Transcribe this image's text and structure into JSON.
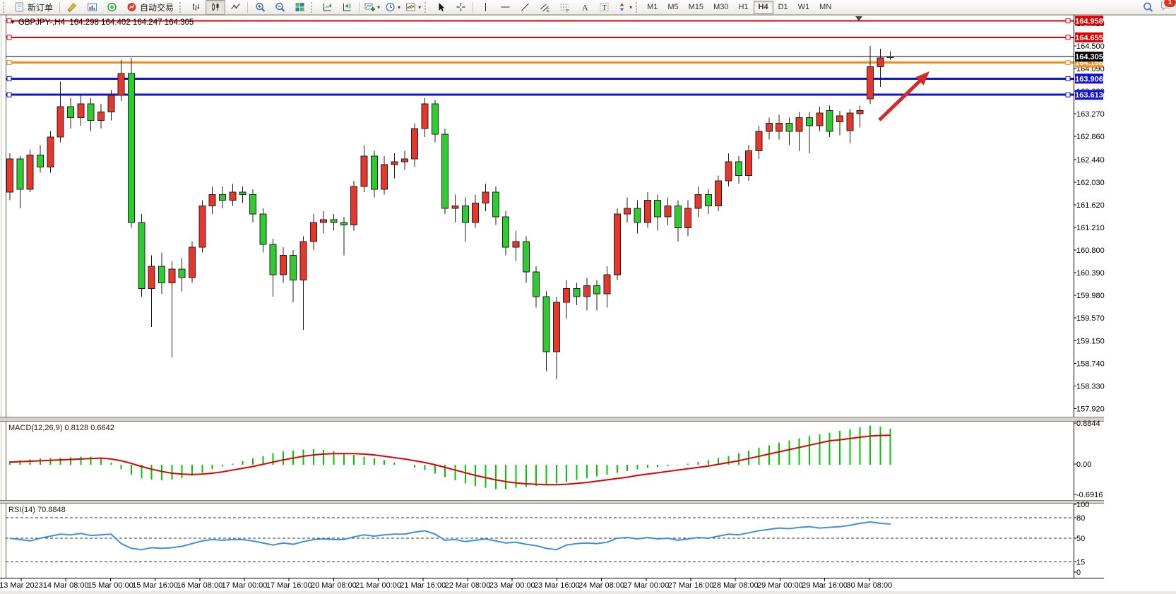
{
  "toolbar": {
    "new_order_label": "新订单",
    "autotrade_label": "自动交易",
    "timeframes": [
      "M1",
      "M5",
      "M15",
      "M30",
      "H1",
      "H4",
      "D1",
      "W1",
      "MN"
    ],
    "active_timeframe": "H4",
    "notification_count": "1"
  },
  "chart": {
    "title": {
      "symbol_period": "GBPJPY-,H4",
      "open": "164.298",
      "high": "164.402",
      "low": "164.247",
      "close": "164.305"
    },
    "colors": {
      "bull": "#e8362a",
      "bear": "#2fcc2f",
      "wick": "#1a1a1a",
      "red_level": "#e00000",
      "orange_level": "#ef8e1e",
      "blue_level": "#1212d2",
      "bid": "#000000",
      "macd_hist": "#00c800",
      "macd_signal": "#e00000",
      "rsi_line": "#3a91e0",
      "arrow": "#d42929"
    },
    "price_axis_ticks": [
      "164.910",
      "164.500",
      "164.090",
      "163.680",
      "163.270",
      "162.860",
      "162.440",
      "162.030",
      "161.620",
      "161.210",
      "160.800",
      "160.390",
      "159.980",
      "159.570",
      "159.150",
      "158.740",
      "158.330",
      "157.920"
    ],
    "time_axis_labels": [
      "13 Mar 2023",
      "14 Mar 08:00",
      "15 Mar 00:00",
      "15 Mar 16:00",
      "16 Mar 08:00",
      "17 Mar 00:00",
      "17 Mar 16:00",
      "20 Mar 08:00",
      "21 Mar 00:00",
      "21 Mar 16:00",
      "22 Mar 08:00",
      "23 Mar 00:00",
      "23 Mar 16:00",
      "24 Mar 08:00",
      "27 Mar 00:00",
      "27 Mar 16:00",
      "28 Mar 08:00",
      "29 Mar 00:00",
      "29 Mar 16:00",
      "30 Mar 08:00"
    ],
    "levels": [
      {
        "label": "164.958",
        "value": 164.958,
        "type": "red"
      },
      {
        "label": "164.655",
        "value": 164.655,
        "type": "red"
      },
      {
        "label": "164.198",
        "value": 164.198,
        "type": "orange"
      },
      {
        "label": "163.906",
        "value": 163.906,
        "type": "blue"
      },
      {
        "label": "163.613",
        "value": 163.613,
        "type": "blue"
      }
    ],
    "bid": {
      "label": "164.305",
      "value": 164.305
    },
    "candles": [
      [
        161.85,
        162.55,
        161.7,
        162.45
      ],
      [
        162.45,
        162.5,
        161.55,
        161.9
      ],
      [
        161.9,
        162.62,
        161.85,
        162.52
      ],
      [
        162.52,
        162.7,
        162.2,
        162.3
      ],
      [
        162.3,
        162.95,
        162.2,
        162.85
      ],
      [
        162.85,
        163.85,
        162.75,
        163.4
      ],
      [
        163.4,
        163.55,
        163.0,
        163.2
      ],
      [
        163.2,
        163.6,
        163.05,
        163.45
      ],
      [
        163.45,
        163.55,
        162.95,
        163.15
      ],
      [
        163.15,
        163.45,
        163.0,
        163.3
      ],
      [
        163.3,
        163.7,
        163.15,
        163.6
      ],
      [
        163.6,
        164.25,
        163.5,
        164.0
      ],
      [
        164.0,
        164.28,
        161.2,
        161.3
      ],
      [
        161.3,
        161.45,
        159.95,
        160.1
      ],
      [
        160.1,
        160.7,
        159.4,
        160.5
      ],
      [
        160.5,
        160.75,
        160.0,
        160.2
      ],
      [
        160.2,
        160.6,
        158.85,
        160.45
      ],
      [
        160.45,
        160.65,
        160.05,
        160.3
      ],
      [
        160.3,
        160.95,
        160.2,
        160.85
      ],
      [
        160.85,
        161.7,
        160.75,
        161.6
      ],
      [
        161.6,
        161.95,
        161.45,
        161.8
      ],
      [
        161.8,
        161.95,
        161.55,
        161.7
      ],
      [
        161.7,
        162.0,
        161.6,
        161.85
      ],
      [
        161.85,
        161.95,
        161.65,
        161.8
      ],
      [
        161.8,
        161.9,
        161.3,
        161.45
      ],
      [
        161.45,
        161.55,
        160.75,
        160.9
      ],
      [
        160.9,
        161.0,
        159.95,
        160.35
      ],
      [
        160.35,
        160.85,
        160.2,
        160.7
      ],
      [
        160.7,
        160.8,
        159.85,
        160.25
      ],
      [
        160.25,
        161.05,
        159.35,
        160.95
      ],
      [
        160.95,
        161.45,
        160.8,
        161.3
      ],
      [
        161.3,
        161.5,
        161.1,
        161.35
      ],
      [
        161.35,
        161.45,
        161.15,
        161.3
      ],
      [
        161.3,
        161.4,
        160.7,
        161.25
      ],
      [
        161.25,
        162.05,
        161.15,
        161.95
      ],
      [
        161.95,
        162.7,
        161.85,
        162.5
      ],
      [
        162.5,
        162.6,
        161.75,
        161.9
      ],
      [
        161.9,
        162.5,
        161.8,
        162.35
      ],
      [
        162.35,
        162.55,
        162.1,
        162.4
      ],
      [
        162.4,
        162.6,
        162.25,
        162.45
      ],
      [
        162.45,
        163.1,
        162.3,
        163.0
      ],
      [
        163.0,
        163.55,
        162.85,
        163.45
      ],
      [
        163.45,
        163.52,
        162.75,
        162.9
      ],
      [
        162.9,
        163.0,
        161.45,
        161.55
      ],
      [
        161.55,
        161.8,
        161.3,
        161.6
      ],
      [
        161.6,
        161.75,
        160.95,
        161.3
      ],
      [
        161.3,
        161.8,
        161.2,
        161.65
      ],
      [
        161.65,
        162.0,
        161.5,
        161.85
      ],
      [
        161.85,
        161.95,
        161.25,
        161.4
      ],
      [
        161.4,
        161.5,
        160.7,
        160.85
      ],
      [
        160.85,
        161.15,
        160.6,
        160.95
      ],
      [
        160.95,
        161.05,
        160.2,
        160.4
      ],
      [
        160.4,
        160.5,
        159.75,
        159.95
      ],
      [
        159.95,
        160.05,
        158.6,
        158.95
      ],
      [
        158.95,
        159.95,
        158.45,
        159.85
      ],
      [
        159.85,
        160.25,
        159.55,
        160.1
      ],
      [
        160.1,
        160.2,
        159.8,
        159.95
      ],
      [
        159.95,
        160.3,
        159.7,
        160.15
      ],
      [
        160.15,
        160.25,
        159.7,
        160.0
      ],
      [
        160.0,
        160.5,
        159.75,
        160.35
      ],
      [
        160.35,
        161.55,
        160.25,
        161.45
      ],
      [
        161.45,
        161.75,
        161.3,
        161.55
      ],
      [
        161.55,
        161.7,
        161.1,
        161.3
      ],
      [
        161.3,
        161.85,
        161.2,
        161.7
      ],
      [
        161.7,
        161.8,
        161.15,
        161.4
      ],
      [
        161.4,
        161.75,
        161.25,
        161.6
      ],
      [
        161.6,
        161.7,
        160.95,
        161.2
      ],
      [
        161.2,
        161.7,
        161.05,
        161.55
      ],
      [
        161.55,
        161.95,
        161.4,
        161.8
      ],
      [
        161.8,
        161.9,
        161.45,
        161.6
      ],
      [
        161.6,
        162.15,
        161.5,
        162.05
      ],
      [
        162.05,
        162.55,
        161.95,
        162.4
      ],
      [
        162.4,
        162.5,
        162.0,
        162.15
      ],
      [
        162.15,
        162.7,
        162.05,
        162.6
      ],
      [
        162.6,
        163.05,
        162.45,
        162.95
      ],
      [
        162.95,
        163.2,
        162.8,
        163.1
      ],
      [
        162.95,
        163.25,
        162.8,
        163.1
      ],
      [
        163.1,
        163.2,
        162.7,
        162.95
      ],
      [
        162.95,
        163.3,
        162.6,
        163.2
      ],
      [
        163.2,
        163.3,
        162.55,
        163.05
      ],
      [
        163.05,
        163.4,
        162.95,
        163.28
      ],
      [
        163.33,
        163.42,
        162.85,
        162.95
      ],
      [
        163.12,
        163.32,
        162.88,
        163.23
      ],
      [
        162.96,
        163.36,
        162.73,
        163.28
      ],
      [
        163.27,
        163.42,
        163.02,
        163.33
      ],
      [
        163.54,
        164.5,
        163.45,
        164.12
      ],
      [
        164.12,
        164.45,
        163.76,
        164.28
      ],
      [
        164.298,
        164.402,
        164.247,
        164.305
      ]
    ]
  },
  "indicators": {
    "macd": {
      "label": "MACD(12,26,9)",
      "main_value": "0.8128",
      "signal_value": "0.6642",
      "axis": [
        "0.8844",
        "0.00",
        "-0.6916"
      ],
      "histogram": [
        0.08,
        0.1,
        0.12,
        0.14,
        0.15,
        0.16,
        0.17,
        0.18,
        0.18,
        0.17,
        0.05,
        -0.1,
        -0.22,
        -0.3,
        -0.33,
        -0.35,
        -0.33,
        -0.3,
        -0.25,
        -0.18,
        -0.1,
        -0.04,
        0.02,
        0.08,
        0.14,
        0.2,
        0.26,
        0.3,
        0.32,
        0.34,
        0.35,
        0.33,
        0.3,
        0.26,
        0.22,
        0.18,
        0.14,
        0.1,
        0.05,
        0.0,
        -0.06,
        -0.12,
        -0.2,
        -0.28,
        -0.35,
        -0.42,
        -0.48,
        -0.52,
        -0.55,
        -0.55,
        -0.52,
        -0.5,
        -0.48,
        -0.45,
        -0.42,
        -0.38,
        -0.34,
        -0.3,
        -0.26,
        -0.22,
        -0.18,
        -0.14,
        -0.1,
        -0.07,
        -0.05,
        -0.03,
        -0.01,
        0.02,
        0.06,
        0.1,
        0.15,
        0.2,
        0.26,
        0.32,
        0.38,
        0.44,
        0.5,
        0.55,
        0.6,
        0.64,
        0.68,
        0.72,
        0.76,
        0.8,
        0.84,
        0.8844,
        0.86,
        0.8128
      ],
      "signal_line": [
        0.06,
        0.07,
        0.08,
        0.09,
        0.1,
        0.11,
        0.12,
        0.13,
        0.14,
        0.15,
        0.13,
        0.09,
        0.03,
        -0.04,
        -0.1,
        -0.15,
        -0.19,
        -0.21,
        -0.22,
        -0.21,
        -0.19,
        -0.16,
        -0.12,
        -0.08,
        -0.04,
        0.01,
        0.06,
        0.11,
        0.15,
        0.19,
        0.22,
        0.24,
        0.25,
        0.25,
        0.25,
        0.24,
        0.22,
        0.19,
        0.16,
        0.13,
        0.09,
        0.05,
        0.0,
        -0.06,
        -0.12,
        -0.18,
        -0.24,
        -0.29,
        -0.34,
        -0.38,
        -0.41,
        -0.43,
        -0.44,
        -0.45,
        -0.45,
        -0.44,
        -0.42,
        -0.4,
        -0.37,
        -0.34,
        -0.31,
        -0.28,
        -0.24,
        -0.21,
        -0.18,
        -0.15,
        -0.12,
        -0.09,
        -0.06,
        -0.03,
        0.01,
        0.05,
        0.09,
        0.14,
        0.19,
        0.24,
        0.29,
        0.34,
        0.39,
        0.44,
        0.49,
        0.54,
        0.56,
        0.59,
        0.62,
        0.645,
        0.66,
        0.6642
      ]
    },
    "rsi": {
      "label": "RSI(14)",
      "value": "70.8848",
      "axis": [
        "100",
        "80",
        "50",
        "15",
        "0"
      ],
      "dashed_levels": [
        80,
        50,
        15
      ],
      "values": [
        50,
        48,
        46,
        50,
        53,
        56,
        55,
        57,
        54,
        55,
        56,
        42,
        35,
        33,
        36,
        35,
        36,
        38,
        42,
        46,
        48,
        47,
        48,
        48,
        46,
        43,
        40,
        43,
        41,
        45,
        48,
        49,
        48,
        48,
        52,
        55,
        53,
        55,
        56,
        56,
        59,
        61,
        56,
        47,
        48,
        45,
        47,
        49,
        46,
        43,
        44,
        41,
        39,
        35,
        33,
        40,
        42,
        43,
        42,
        44,
        50,
        51,
        49,
        51,
        49,
        50,
        47,
        49,
        51,
        50,
        53,
        56,
        55,
        58,
        61,
        63,
        65,
        64,
        66,
        67,
        65,
        66,
        67,
        69,
        72,
        74,
        72,
        70.8848
      ]
    }
  }
}
